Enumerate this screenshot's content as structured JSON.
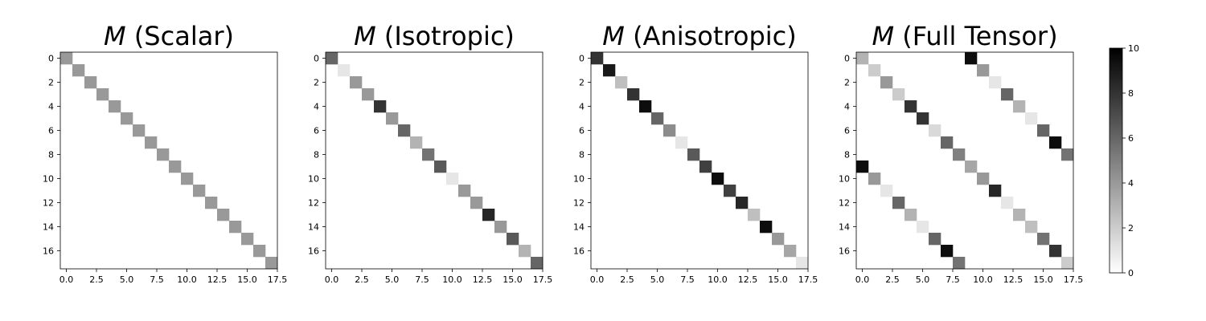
{
  "chart_data": {
    "type": "heatmap",
    "colormap": "Greys",
    "vmin": 0,
    "vmax": 10,
    "colorbar": {
      "ticks": [
        0,
        2,
        4,
        6,
        8,
        10
      ],
      "tick_labels": [
        "0",
        "2",
        "4",
        "6",
        "8",
        "10"
      ]
    },
    "panels": [
      {
        "title_symbol": "M",
        "title_rest": " (Scalar)",
        "size": 18,
        "x_ticks": [
          0,
          2.5,
          5,
          7.5,
          10,
          12.5,
          15,
          17.5
        ],
        "x_tick_labels": [
          "0.0",
          "2.5",
          "5.0",
          "7.5",
          "10.0",
          "12.5",
          "15.0",
          "17.5"
        ],
        "y_ticks": [
          0,
          2,
          4,
          6,
          8,
          10,
          12,
          14,
          16
        ],
        "y_tick_labels": [
          "0",
          "2",
          "4",
          "6",
          "8",
          "10",
          "12",
          "14",
          "16"
        ],
        "cells": [
          [
            0,
            0,
            4
          ],
          [
            1,
            1,
            4
          ],
          [
            2,
            2,
            4
          ],
          [
            3,
            3,
            4
          ],
          [
            4,
            4,
            4
          ],
          [
            5,
            5,
            4
          ],
          [
            6,
            6,
            4
          ],
          [
            7,
            7,
            4
          ],
          [
            8,
            8,
            4
          ],
          [
            9,
            9,
            4
          ],
          [
            10,
            10,
            4
          ],
          [
            11,
            11,
            4
          ],
          [
            12,
            12,
            4
          ],
          [
            13,
            13,
            4
          ],
          [
            14,
            14,
            4
          ],
          [
            15,
            15,
            4
          ],
          [
            16,
            16,
            4
          ],
          [
            17,
            17,
            4
          ]
        ]
      },
      {
        "title_symbol": "M",
        "title_rest": " (Isotropic)",
        "size": 18,
        "x_ticks": [
          0,
          2.5,
          5,
          7.5,
          10,
          12.5,
          15,
          17.5
        ],
        "x_tick_labels": [
          "0.0",
          "2.5",
          "5.0",
          "7.5",
          "10.0",
          "12.5",
          "15.0",
          "17.5"
        ],
        "y_ticks": [
          0,
          2,
          4,
          6,
          8,
          10,
          12,
          14,
          16
        ],
        "y_tick_labels": [
          "0",
          "2",
          "4",
          "6",
          "8",
          "10",
          "12",
          "14",
          "16"
        ],
        "cells": [
          [
            0,
            0,
            6
          ],
          [
            1,
            1,
            1
          ],
          [
            2,
            2,
            4
          ],
          [
            3,
            3,
            4
          ],
          [
            4,
            4,
            8
          ],
          [
            5,
            5,
            4
          ],
          [
            6,
            6,
            6
          ],
          [
            7,
            7,
            3
          ],
          [
            8,
            8,
            5.5
          ],
          [
            9,
            9,
            6.5
          ],
          [
            10,
            10,
            1
          ],
          [
            11,
            11,
            4
          ],
          [
            12,
            12,
            4
          ],
          [
            13,
            13,
            8.5
          ],
          [
            14,
            14,
            4
          ],
          [
            15,
            15,
            6.5
          ],
          [
            16,
            16,
            3
          ],
          [
            17,
            17,
            6
          ]
        ]
      },
      {
        "title_symbol": "M",
        "title_rest": " (Anisotropic)",
        "size": 18,
        "x_ticks": [
          0,
          2.5,
          5,
          7.5,
          10,
          12.5,
          15,
          17.5
        ],
        "x_tick_labels": [
          "0.0",
          "2.5",
          "5.0",
          "7.5",
          "10.0",
          "12.5",
          "15.0",
          "17.5"
        ],
        "y_ticks": [
          0,
          2,
          4,
          6,
          8,
          10,
          12,
          14,
          16
        ],
        "y_tick_labels": [
          "0",
          "2",
          "4",
          "6",
          "8",
          "10",
          "12",
          "14",
          "16"
        ],
        "cells": [
          [
            0,
            0,
            8
          ],
          [
            1,
            1,
            9
          ],
          [
            2,
            2,
            2.5
          ],
          [
            3,
            3,
            8
          ],
          [
            4,
            4,
            9.5
          ],
          [
            5,
            5,
            6
          ],
          [
            6,
            6,
            4.5
          ],
          [
            7,
            7,
            1
          ],
          [
            8,
            8,
            6.5
          ],
          [
            9,
            9,
            7.5
          ],
          [
            10,
            10,
            9.5
          ],
          [
            11,
            11,
            7.5
          ],
          [
            12,
            12,
            8.5
          ],
          [
            13,
            13,
            2.5
          ],
          [
            14,
            14,
            9.5
          ],
          [
            15,
            15,
            4
          ],
          [
            16,
            16,
            3.5
          ],
          [
            17,
            17,
            1
          ]
        ]
      },
      {
        "title_symbol": "M",
        "title_rest": " (Full Tensor)",
        "size": 18,
        "x_ticks": [
          0,
          2.5,
          5,
          7.5,
          10,
          12.5,
          15,
          17.5
        ],
        "x_tick_labels": [
          "0.0",
          "2.5",
          "5.0",
          "7.5",
          "10.0",
          "12.5",
          "15.0",
          "17.5"
        ],
        "y_ticks": [
          0,
          2,
          4,
          6,
          8,
          10,
          12,
          14,
          16
        ],
        "y_tick_labels": [
          "0",
          "2",
          "4",
          "6",
          "8",
          "10",
          "12",
          "14",
          "16"
        ],
        "cells": [
          [
            0,
            0,
            3
          ],
          [
            1,
            1,
            2
          ],
          [
            2,
            2,
            4
          ],
          [
            3,
            3,
            2
          ],
          [
            4,
            4,
            8
          ],
          [
            5,
            5,
            8
          ],
          [
            6,
            6,
            1.5
          ],
          [
            7,
            7,
            6
          ],
          [
            8,
            8,
            5
          ],
          [
            9,
            9,
            3.5
          ],
          [
            10,
            10,
            4
          ],
          [
            11,
            11,
            8.5
          ],
          [
            12,
            12,
            1
          ],
          [
            13,
            13,
            3
          ],
          [
            14,
            14,
            2.5
          ],
          [
            15,
            15,
            5.5
          ],
          [
            16,
            16,
            8
          ],
          [
            17,
            17,
            2
          ],
          [
            0,
            9,
            9.5
          ],
          [
            1,
            10,
            4
          ],
          [
            2,
            11,
            1
          ],
          [
            3,
            12,
            6
          ],
          [
            4,
            13,
            3
          ],
          [
            5,
            14,
            1
          ],
          [
            6,
            15,
            6
          ],
          [
            7,
            16,
            9.5
          ],
          [
            8,
            17,
            5.5
          ],
          [
            9,
            0,
            9.5
          ],
          [
            10,
            1,
            4
          ],
          [
            11,
            2,
            1
          ],
          [
            12,
            3,
            6
          ],
          [
            13,
            4,
            3
          ],
          [
            14,
            5,
            1
          ],
          [
            15,
            6,
            6
          ],
          [
            16,
            7,
            9.5
          ],
          [
            17,
            8,
            5.5
          ]
        ]
      }
    ]
  }
}
